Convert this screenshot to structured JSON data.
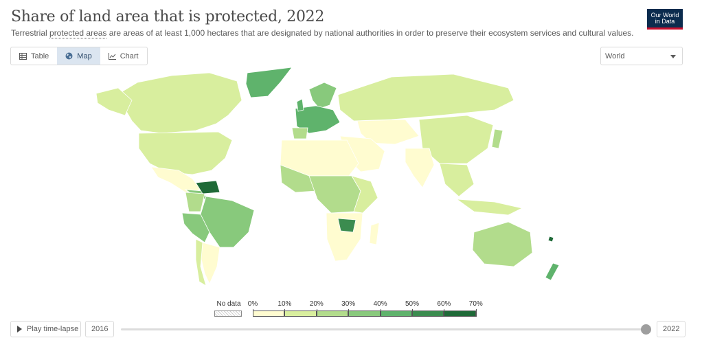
{
  "header": {
    "title": "Share of land area that is protected, 2022",
    "subtitle_pre": "Terrestrial ",
    "subtitle_link": "protected areas",
    "subtitle_post": " are areas of at least 1,000 hectares that are designated by national authorities in order to preserve their ecosystem services and cultural values."
  },
  "logo": {
    "line1": "Our World",
    "line2": "in Data"
  },
  "tabs": [
    {
      "label": "Table",
      "icon": "table-icon",
      "active": false
    },
    {
      "label": "Map",
      "icon": "globe-icon",
      "active": true
    },
    {
      "label": "Chart",
      "icon": "line-chart-icon",
      "active": false
    }
  ],
  "region_select": {
    "value": "World"
  },
  "legend": {
    "no_data_label": "No data",
    "labels": [
      "0%",
      "10%",
      "20%",
      "30%",
      "40%",
      "50%",
      "60%",
      "70%"
    ],
    "colors": [
      "#fffcd0",
      "#d8ee9e",
      "#b2dc8c",
      "#88c97c",
      "#5fb36c",
      "#3b8c4f",
      "#1f6a38"
    ],
    "no_data_color": "#e8e8e8"
  },
  "timeline": {
    "play_label": "Play time-lapse",
    "start_year": "2016",
    "end_year": "2022"
  }
}
